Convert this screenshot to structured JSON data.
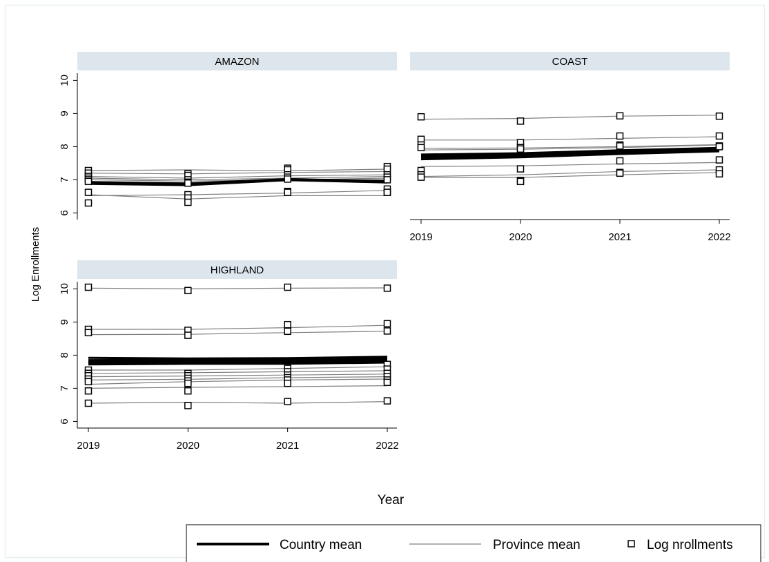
{
  "chart_data": {
    "type": "line",
    "layout": "faceted",
    "xlabel": "Year",
    "ylabel": "Log Enrollments",
    "x": [
      2019,
      2020,
      2021,
      2022
    ],
    "x_tick_labels": [
      "2019",
      "2020",
      "2021",
      "2022"
    ],
    "y_ticks": [
      6,
      7,
      8,
      9,
      10
    ],
    "y_tick_labels": [
      "6",
      "7",
      "8",
      "9",
      "10"
    ],
    "ylim": [
      5.8,
      10.3
    ],
    "grid": false,
    "legend_position": "bottom",
    "legend": [
      {
        "label": "Country mean",
        "style": "thick-line",
        "color": "#000000"
      },
      {
        "label": "Province mean",
        "style": "thin-line",
        "color": "#7f7f7f"
      },
      {
        "label": "Log nrollments",
        "style": "square-marker",
        "color": "#000000"
      }
    ],
    "colors": {
      "panel_header": "#dde6ed",
      "province_line": "#7f7f7f",
      "country_line": "#000000",
      "background": "#ffffff",
      "frame": "#e8f0f0"
    },
    "panels": [
      {
        "title": "AMAZON",
        "country_mean": [
          [
            6.88,
            6.84,
            6.99,
            6.92
          ],
          [
            6.93,
            6.89,
            7.02,
            6.96
          ]
        ],
        "province_means": [
          [
            7.28,
            7.3,
            7.27,
            7.32
          ],
          [
            7.2,
            7.18,
            7.22,
            7.25
          ],
          [
            7.1,
            7.05,
            7.12,
            7.15
          ],
          [
            7.05,
            7.0,
            7.05,
            7.1
          ],
          [
            7.0,
            6.96,
            7.0,
            7.05
          ],
          [
            6.95,
            6.9,
            7.0,
            7.0
          ],
          [
            6.55,
            6.42,
            6.52,
            6.52
          ],
          [
            6.52,
            6.55,
            6.6,
            6.68
          ]
        ],
        "observations": [
          [
            7.28,
            7.18,
            7.35,
            7.4
          ],
          [
            7.2,
            7.13,
            7.3,
            7.32
          ],
          [
            7.1,
            7.0,
            7.15,
            7.15
          ],
          [
            7.05,
            6.93,
            7.08,
            7.08
          ],
          [
            7.0,
            6.9,
            7.02,
            7.0
          ],
          [
            6.95,
            6.55,
            6.65,
            6.72
          ],
          [
            6.62,
            6.45,
            6.62,
            6.62
          ],
          [
            6.3,
            6.32,
            6.62,
            6.62
          ]
        ]
      },
      {
        "title": "COAST",
        "country_mean": [
          [
            7.62,
            7.68,
            7.78,
            7.86
          ],
          [
            7.68,
            7.73,
            7.82,
            7.9
          ],
          [
            7.72,
            7.77,
            7.86,
            7.93
          ],
          [
            7.76,
            7.8,
            7.89,
            7.96
          ]
        ],
        "province_means": [
          [
            8.83,
            8.85,
            8.92,
            8.95
          ],
          [
            8.2,
            8.2,
            8.25,
            8.3
          ],
          [
            7.95,
            7.96,
            8.0,
            8.06
          ],
          [
            7.9,
            7.92,
            7.97,
            8.05
          ],
          [
            7.4,
            7.42,
            7.48,
            7.52
          ],
          [
            7.1,
            7.15,
            7.25,
            7.3
          ],
          [
            7.07,
            7.07,
            7.15,
            7.22
          ]
        ],
        "observations": [
          [
            8.9,
            8.77,
            8.93,
            8.92
          ],
          [
            8.22,
            8.12,
            8.32,
            8.32
          ],
          [
            8.05,
            7.97,
            8.05,
            8.02
          ],
          [
            7.97,
            7.93,
            8.02,
            8.0
          ],
          [
            7.28,
            7.33,
            7.57,
            7.6
          ],
          [
            7.15,
            6.98,
            7.22,
            7.3
          ],
          [
            7.08,
            6.95,
            7.2,
            7.18
          ]
        ]
      },
      {
        "title": "HIGHLAND",
        "country_mean": [
          [
            7.72,
            7.74,
            7.74,
            7.78
          ],
          [
            7.76,
            7.78,
            7.79,
            7.83
          ],
          [
            7.8,
            7.82,
            7.84,
            7.88
          ],
          [
            7.85,
            7.86,
            7.88,
            7.92
          ],
          [
            7.92,
            7.9,
            7.91,
            7.95
          ]
        ],
        "province_means": [
          [
            10.02,
            10.0,
            10.02,
            10.03
          ],
          [
            8.78,
            8.78,
            8.83,
            8.9
          ],
          [
            8.62,
            8.63,
            8.68,
            8.72
          ],
          [
            7.55,
            7.55,
            7.6,
            7.65
          ],
          [
            7.45,
            7.47,
            7.5,
            7.53
          ],
          [
            7.35,
            7.37,
            7.4,
            7.43
          ],
          [
            7.25,
            7.27,
            7.32,
            7.35
          ],
          [
            7.12,
            7.2,
            7.25,
            7.28
          ],
          [
            7.0,
            7.03,
            7.05,
            7.08
          ],
          [
            6.55,
            6.58,
            6.55,
            6.6
          ]
        ],
        "observations": [
          [
            10.05,
            9.95,
            10.05,
            10.02
          ],
          [
            8.78,
            8.75,
            8.92,
            8.95
          ],
          [
            8.68,
            8.6,
            8.72,
            8.73
          ],
          [
            7.55,
            7.45,
            7.6,
            7.72
          ],
          [
            7.45,
            7.38,
            7.5,
            7.58
          ],
          [
            7.38,
            7.3,
            7.4,
            7.45
          ],
          [
            7.28,
            7.22,
            7.32,
            7.35
          ],
          [
            7.2,
            7.15,
            7.25,
            7.25
          ],
          [
            6.92,
            6.92,
            7.15,
            7.18
          ],
          [
            6.55,
            6.48,
            6.6,
            6.62
          ]
        ]
      }
    ]
  }
}
